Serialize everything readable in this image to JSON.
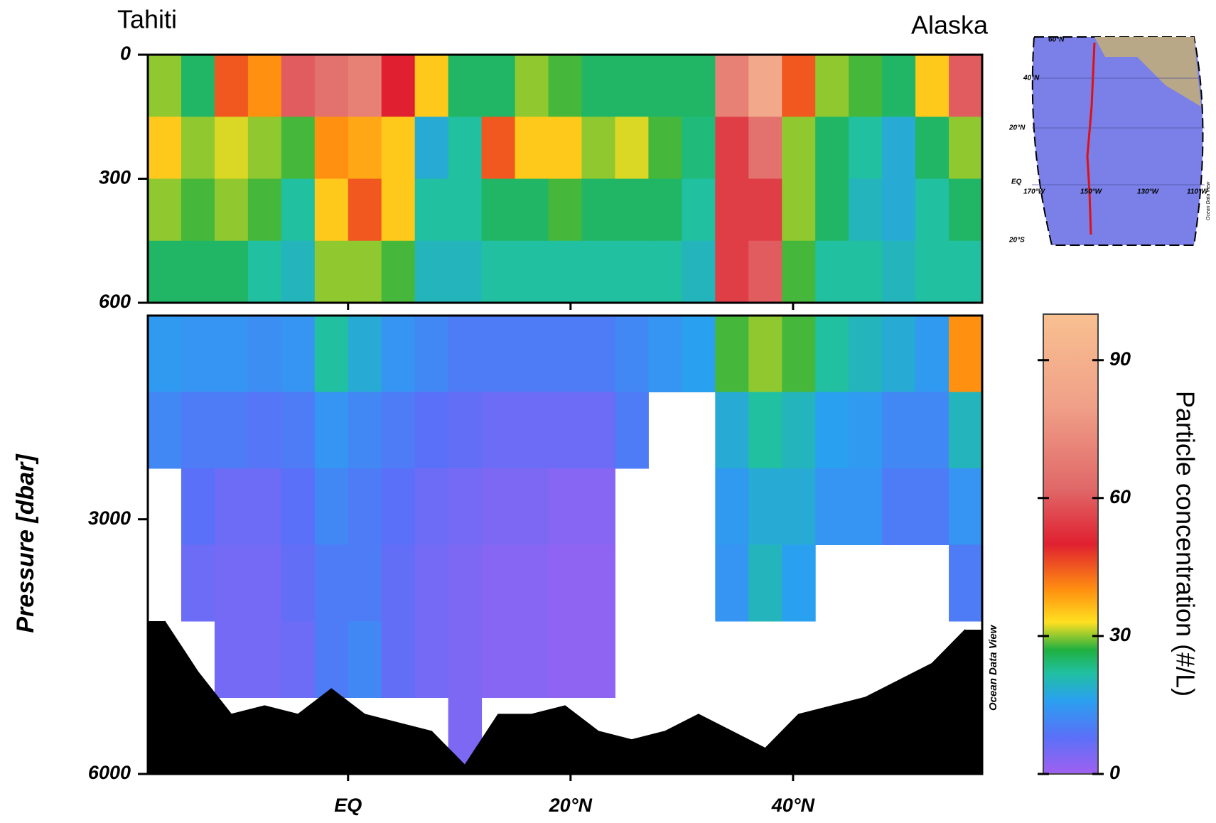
{
  "chart_data": {
    "type": "section",
    "start_label": "Tahiti",
    "end_label": "Alaska",
    "ylabel": "Pressure [dbar]",
    "watermark": "Ocean Data View",
    "xlim": [
      -18,
      57
    ],
    "xticks": [
      {
        "value": 0,
        "label": "EQ"
      },
      {
        "value": 20,
        "label": "20°N"
      },
      {
        "value": 40,
        "label": "40°N"
      }
    ],
    "x": [
      -16.5,
      -13.5,
      -10.5,
      -7.5,
      -4.5,
      -1.5,
      1.5,
      4.5,
      7.5,
      10.5,
      13.5,
      16.5,
      19.5,
      22.5,
      25.5,
      28.5,
      31.5,
      34.5,
      37.5,
      40.5,
      43.5,
      46.5,
      49.5,
      52.5,
      55.5
    ],
    "panels": [
      {
        "ylim": [
          0,
          600
        ],
        "yticks": [
          0,
          300,
          600
        ],
        "y": [
          75,
          225,
          375,
          525
        ],
        "values": [
          [
            30,
            35,
            30,
            25
          ],
          [
            25,
            30,
            28,
            25
          ],
          [
            45,
            32,
            30,
            25
          ],
          [
            40,
            30,
            28,
            22
          ],
          [
            60,
            28,
            22,
            20
          ],
          [
            65,
            40,
            35,
            30
          ],
          [
            70,
            38,
            45,
            30
          ],
          [
            50,
            35,
            35,
            28
          ],
          [
            35,
            18,
            22,
            20
          ],
          [
            25,
            22,
            22,
            20
          ],
          [
            25,
            45,
            25,
            22
          ],
          [
            30,
            35,
            25,
            22
          ],
          [
            28,
            35,
            28,
            22
          ],
          [
            25,
            30,
            25,
            22
          ],
          [
            25,
            32,
            25,
            22
          ],
          [
            25,
            28,
            25,
            22
          ],
          [
            25,
            24,
            22,
            20
          ],
          [
            70,
            55,
            55,
            55
          ],
          [
            85,
            65,
            55,
            60
          ],
          [
            45,
            30,
            30,
            28
          ],
          [
            30,
            25,
            25,
            22
          ],
          [
            28,
            22,
            20,
            22
          ],
          [
            25,
            18,
            18,
            20
          ],
          [
            35,
            25,
            22,
            22
          ],
          [
            60,
            30,
            25,
            22
          ]
        ]
      },
      {
        "ylim": [
          600,
          6000
        ],
        "yticks": [
          3000,
          6000
        ],
        "y": [
          1050,
          1950,
          2850,
          3750,
          4650,
          5550
        ],
        "values": [
          [
            15,
            12,
            null,
            null,
            null,
            null
          ],
          [
            14,
            10,
            8,
            6,
            null,
            null
          ],
          [
            14,
            10,
            6,
            5,
            5,
            null
          ],
          [
            13,
            9,
            6,
            5,
            5,
            null
          ],
          [
            14,
            10,
            8,
            7,
            6,
            null
          ],
          [
            22,
            14,
            12,
            10,
            10,
            null
          ],
          [
            18,
            12,
            10,
            10,
            12,
            null
          ],
          [
            14,
            10,
            8,
            7,
            7,
            null
          ],
          [
            12,
            8,
            6,
            5,
            5,
            null
          ],
          [
            10,
            7,
            5,
            4,
            4,
            4
          ],
          [
            10,
            6,
            4,
            3,
            3,
            null
          ],
          [
            10,
            6,
            4,
            3,
            3,
            null
          ],
          [
            10,
            6,
            3,
            2,
            2,
            null
          ],
          [
            10,
            6,
            3,
            2,
            2,
            null
          ],
          [
            12,
            10,
            null,
            null,
            null,
            null
          ],
          [
            14,
            null,
            null,
            null,
            null,
            null
          ],
          [
            16,
            null,
            null,
            null,
            null,
            null
          ],
          [
            28,
            18,
            15,
            14,
            null,
            null
          ],
          [
            30,
            22,
            18,
            20,
            null,
            null
          ],
          [
            28,
            20,
            18,
            16,
            null,
            null
          ],
          [
            22,
            16,
            14,
            null,
            null,
            null
          ],
          [
            20,
            15,
            14,
            null,
            null,
            null
          ],
          [
            18,
            12,
            10,
            null,
            null,
            null
          ],
          [
            15,
            12,
            10,
            null,
            null,
            null
          ],
          [
            40,
            20,
            14,
            10,
            null,
            null
          ]
        ],
        "seafloor": [
          4200,
          4800,
          5300,
          5200,
          5300,
          5000,
          5300,
          5400,
          5500,
          5900,
          5300,
          5300,
          5200,
          5500,
          5600,
          5500,
          5300,
          5500,
          5700,
          5300,
          5200,
          5100,
          4900,
          4700,
          4300
        ]
      }
    ],
    "colorbar": {
      "label": "Particle concentration (#/L)",
      "clim": [
        0,
        100
      ],
      "ticks": [
        0,
        30,
        60,
        90
      ],
      "colorscale": [
        {
          "value": 0,
          "color": "#a060f0"
        },
        {
          "value": 8,
          "color": "#5a70f8"
        },
        {
          "value": 16,
          "color": "#2aa0f0"
        },
        {
          "value": 22,
          "color": "#20c0a0"
        },
        {
          "value": 27,
          "color": "#20b040"
        },
        {
          "value": 33,
          "color": "#ffe020"
        },
        {
          "value": 40,
          "color": "#ff9010"
        },
        {
          "value": 50,
          "color": "#e02030"
        },
        {
          "value": 62,
          "color": "#e06868"
        },
        {
          "value": 80,
          "color": "#f0a088"
        },
        {
          "value": 100,
          "color": "#f8c090"
        }
      ]
    }
  },
  "map": {
    "lat_labels": [
      "60°N",
      "40°N",
      "20°N",
      "EQ",
      "20°S"
    ],
    "lon_labels": [
      "170°W",
      "150°W",
      "130°W",
      "110°W"
    ],
    "watermark": "Ocean Data View"
  }
}
